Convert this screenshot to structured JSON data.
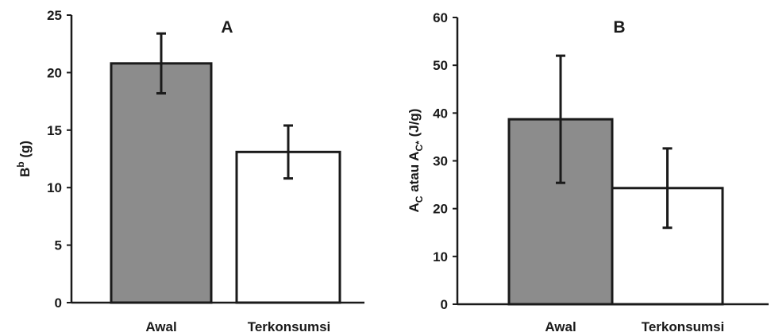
{
  "chart_data": [
    {
      "type": "bar",
      "title": "A",
      "categories": [
        "Awal",
        "Terkonsumsi"
      ],
      "values": [
        20.8,
        13.1
      ],
      "error": [
        2.6,
        2.3
      ],
      "ylabel": {
        "base": "B",
        "sup": "b",
        "rest": " (g)"
      },
      "ylim": [
        0,
        25
      ],
      "yticks": [
        0,
        5,
        10,
        15,
        20,
        25
      ],
      "bar_colors": [
        "#8c8c8c",
        "#ffffff"
      ]
    },
    {
      "type": "bar",
      "title": "B",
      "categories": [
        "Awal",
        "Terkonsumsi"
      ],
      "values": [
        38.7,
        24.3
      ],
      "error": [
        13.3,
        8.3
      ],
      "ylabel": {
        "p1": "A",
        "s1": "C",
        "p2": " atau A",
        "s2": "C*",
        "p3": " (J/g)"
      },
      "ylim": [
        0,
        60
      ],
      "yticks": [
        0,
        10,
        20,
        30,
        40,
        50,
        60
      ],
      "bar_colors": [
        "#8c8c8c",
        "#ffffff"
      ]
    }
  ]
}
